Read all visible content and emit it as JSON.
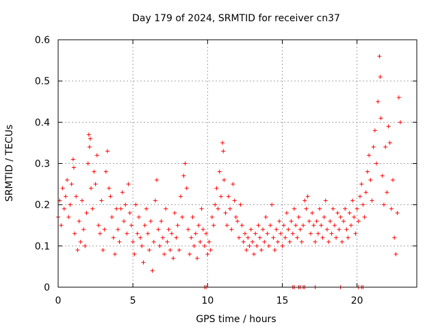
{
  "chart_data": {
    "type": "scatter",
    "title": "Day 179 of 2024, SRMTID for receiver cn37",
    "xlabel": "GPS time / hours",
    "ylabel": "SRMTID / TECUs",
    "xlim": [
      0,
      24
    ],
    "ylim": [
      0,
      0.6
    ],
    "xticks": [
      0,
      5,
      10,
      15,
      20
    ],
    "xtick_labels": [
      "0",
      "5",
      "10",
      "15",
      "20"
    ],
    "yticks": [
      0,
      0.1,
      0.2,
      0.3,
      0.4,
      0.5,
      0.6
    ],
    "ytick_labels": [
      "0",
      "0.1",
      "0.2",
      "0.3",
      "0.4",
      "0.5",
      "0.6"
    ],
    "grid": true,
    "marker": "plus",
    "color": "#ff0000",
    "grid_color": "#a0a0a0",
    "series": [
      {
        "name": "SRMTID",
        "points": [
          [
            0.0,
            0.17
          ],
          [
            0.1,
            0.21
          ],
          [
            0.2,
            0.15
          ],
          [
            0.3,
            0.24
          ],
          [
            0.4,
            0.19
          ],
          [
            0.5,
            0.22
          ],
          [
            0.6,
            0.26
          ],
          [
            0.7,
            0.17
          ],
          [
            0.8,
            0.2
          ],
          [
            0.9,
            0.25
          ],
          [
            1.0,
            0.31
          ],
          [
            1.05,
            0.29
          ],
          [
            1.1,
            0.13
          ],
          [
            1.2,
            0.22
          ],
          [
            1.3,
            0.09
          ],
          [
            1.4,
            0.16
          ],
          [
            1.5,
            0.11
          ],
          [
            1.6,
            0.21
          ],
          [
            1.7,
            0.14
          ],
          [
            1.8,
            0.1
          ],
          [
            1.9,
            0.18
          ],
          [
            2.0,
            0.3
          ],
          [
            2.05,
            0.37
          ],
          [
            2.1,
            0.34
          ],
          [
            2.15,
            0.36
          ],
          [
            2.2,
            0.24
          ],
          [
            2.3,
            0.19
          ],
          [
            2.4,
            0.28
          ],
          [
            2.5,
            0.25
          ],
          [
            2.6,
            0.32
          ],
          [
            2.7,
            0.15
          ],
          [
            2.8,
            0.13
          ],
          [
            2.9,
            0.21
          ],
          [
            3.0,
            0.09
          ],
          [
            3.1,
            0.14
          ],
          [
            3.2,
            0.28
          ],
          [
            3.3,
            0.33
          ],
          [
            3.4,
            0.24
          ],
          [
            3.5,
            0.22
          ],
          [
            3.6,
            0.17
          ],
          [
            3.7,
            0.12
          ],
          [
            3.8,
            0.08
          ],
          [
            3.9,
            0.19
          ],
          [
            4.0,
            0.14
          ],
          [
            4.1,
            0.11
          ],
          [
            4.2,
            0.19
          ],
          [
            4.3,
            0.23
          ],
          [
            4.4,
            0.16
          ],
          [
            4.5,
            0.2
          ],
          [
            4.6,
            0.13
          ],
          [
            4.7,
            0.25
          ],
          [
            4.8,
            0.18
          ],
          [
            4.9,
            0.15
          ],
          [
            5.0,
            0.11
          ],
          [
            5.1,
            0.08
          ],
          [
            5.2,
            0.2
          ],
          [
            5.3,
            0.13
          ],
          [
            5.4,
            0.17
          ],
          [
            5.5,
            0.12
          ],
          [
            5.6,
            0.1
          ],
          [
            5.7,
            0.06
          ],
          [
            5.8,
            0.15
          ],
          [
            5.9,
            0.19
          ],
          [
            6.0,
            0.13
          ],
          [
            6.1,
            0.09
          ],
          [
            6.2,
            0.16
          ],
          [
            6.3,
            0.04
          ],
          [
            6.4,
            0.11
          ],
          [
            6.5,
            0.21
          ],
          [
            6.6,
            0.26
          ],
          [
            6.7,
            0.14
          ],
          [
            6.8,
            0.1
          ],
          [
            6.9,
            0.16
          ],
          [
            7.0,
            0.12
          ],
          [
            7.1,
            0.08
          ],
          [
            7.2,
            0.19
          ],
          [
            7.3,
            0.11
          ],
          [
            7.4,
            0.14
          ],
          [
            7.5,
            0.09
          ],
          [
            7.6,
            0.13
          ],
          [
            7.7,
            0.07
          ],
          [
            7.8,
            0.18
          ],
          [
            7.9,
            0.12
          ],
          [
            8.0,
            0.15
          ],
          [
            8.1,
            0.09
          ],
          [
            8.2,
            0.22
          ],
          [
            8.3,
            0.17
          ],
          [
            8.4,
            0.27
          ],
          [
            8.5,
            0.3
          ],
          [
            8.6,
            0.24
          ],
          [
            8.7,
            0.14
          ],
          [
            8.8,
            0.08
          ],
          [
            8.9,
            0.12
          ],
          [
            9.0,
            0.17
          ],
          [
            9.1,
            0.1
          ],
          [
            9.2,
            0.13
          ],
          [
            9.3,
            0.07
          ],
          [
            9.4,
            0.15
          ],
          [
            9.5,
            0.11
          ],
          [
            9.6,
            0.19
          ],
          [
            9.7,
            0.14
          ],
          [
            9.8,
            0.1
          ],
          [
            9.9,
            0.13
          ],
          [
            10.0,
            0.08
          ],
          [
            10.1,
            0.11
          ],
          [
            10.2,
            0.09
          ],
          [
            10.3,
            0.17
          ],
          [
            10.4,
            0.15
          ],
          [
            10.5,
            0.2
          ],
          [
            10.6,
            0.24
          ],
          [
            10.7,
            0.19
          ],
          [
            10.8,
            0.28
          ],
          [
            10.9,
            0.22
          ],
          [
            11.0,
            0.35
          ],
          [
            11.05,
            0.33
          ],
          [
            11.1,
            0.26
          ],
          [
            11.2,
            0.18
          ],
          [
            11.3,
            0.15
          ],
          [
            11.4,
            0.22
          ],
          [
            11.5,
            0.19
          ],
          [
            11.6,
            0.14
          ],
          [
            11.7,
            0.25
          ],
          [
            11.8,
            0.21
          ],
          [
            11.9,
            0.17
          ],
          [
            12.0,
            0.16
          ],
          [
            12.1,
            0.12
          ],
          [
            12.2,
            0.2
          ],
          [
            12.3,
            0.15
          ],
          [
            12.4,
            0.11
          ],
          [
            12.5,
            0.13
          ],
          [
            12.6,
            0.09
          ],
          [
            12.7,
            0.12
          ],
          [
            12.8,
            0.1
          ],
          [
            12.9,
            0.14
          ],
          [
            13.0,
            0.11
          ],
          [
            13.1,
            0.08
          ],
          [
            13.2,
            0.13
          ],
          [
            13.3,
            0.1
          ],
          [
            13.4,
            0.15
          ],
          [
            13.5,
            0.12
          ],
          [
            13.6,
            0.09
          ],
          [
            13.7,
            0.14
          ],
          [
            13.8,
            0.11
          ],
          [
            13.9,
            0.17
          ],
          [
            14.0,
            0.13
          ],
          [
            14.1,
            0.1
          ],
          [
            14.2,
            0.15
          ],
          [
            14.3,
            0.2
          ],
          [
            14.4,
            0.12
          ],
          [
            14.5,
            0.09
          ],
          [
            14.6,
            0.14
          ],
          [
            14.7,
            0.11
          ],
          [
            14.8,
            0.16
          ],
          [
            14.9,
            0.13
          ],
          [
            15.0,
            0.1
          ],
          [
            15.1,
            0.15
          ],
          [
            15.2,
            0.12
          ],
          [
            15.3,
            0.18
          ],
          [
            15.4,
            0.14
          ],
          [
            15.5,
            0.11
          ],
          [
            15.6,
            0.16
          ],
          [
            15.7,
            0.13
          ],
          [
            15.8,
            0.19
          ],
          [
            15.9,
            0.15
          ],
          [
            16.0,
            0.12
          ],
          [
            16.1,
            0.17
          ],
          [
            16.2,
            0.14
          ],
          [
            16.3,
            0.11
          ],
          [
            16.4,
            0.15
          ],
          [
            16.5,
            0.21
          ],
          [
            16.6,
            0.19
          ],
          [
            16.7,
            0.22
          ],
          [
            16.8,
            0.16
          ],
          [
            16.9,
            0.13
          ],
          [
            17.0,
            0.18
          ],
          [
            17.1,
            0.15
          ],
          [
            17.2,
            0.11
          ],
          [
            17.3,
            0.16
          ],
          [
            17.4,
            0.13
          ],
          [
            17.5,
            0.19
          ],
          [
            17.6,
            0.15
          ],
          [
            17.7,
            0.12
          ],
          [
            17.8,
            0.17
          ],
          [
            17.9,
            0.21
          ],
          [
            18.0,
            0.14
          ],
          [
            18.1,
            0.11
          ],
          [
            18.2,
            0.16
          ],
          [
            18.3,
            0.13
          ],
          [
            18.4,
            0.19
          ],
          [
            18.5,
            0.15
          ],
          [
            18.6,
            0.12
          ],
          [
            18.7,
            0.18
          ],
          [
            18.8,
            0.14
          ],
          [
            18.9,
            0.17
          ],
          [
            19.0,
            0.11
          ],
          [
            19.1,
            0.16
          ],
          [
            19.2,
            0.19
          ],
          [
            19.3,
            0.14
          ],
          [
            19.4,
            0.12
          ],
          [
            19.5,
            0.18
          ],
          [
            19.6,
            0.15
          ],
          [
            19.7,
            0.21
          ],
          [
            19.8,
            0.17
          ],
          [
            19.9,
            0.13
          ],
          [
            20.0,
            0.19
          ],
          [
            20.1,
            0.16
          ],
          [
            20.2,
            0.22
          ],
          [
            20.3,
            0.25
          ],
          [
            20.4,
            0.2
          ],
          [
            20.5,
            0.17
          ],
          [
            20.6,
            0.23
          ],
          [
            20.7,
            0.28
          ],
          [
            20.8,
            0.32
          ],
          [
            20.9,
            0.26
          ],
          [
            21.0,
            0.21
          ],
          [
            21.1,
            0.34
          ],
          [
            21.2,
            0.38
          ],
          [
            21.3,
            0.3
          ],
          [
            21.4,
            0.45
          ],
          [
            21.5,
            0.56
          ],
          [
            21.55,
            0.51
          ],
          [
            21.6,
            0.41
          ],
          [
            21.7,
            0.27
          ],
          [
            21.8,
            0.2
          ],
          [
            21.9,
            0.34
          ],
          [
            22.0,
            0.23
          ],
          [
            22.1,
            0.39
          ],
          [
            22.2,
            0.35
          ],
          [
            22.3,
            0.19
          ],
          [
            22.4,
            0.26
          ],
          [
            22.5,
            0.12
          ],
          [
            22.6,
            0.08
          ],
          [
            22.7,
            0.18
          ],
          [
            22.8,
            0.46
          ],
          [
            22.9,
            0.4
          ]
        ]
      }
    ],
    "zero_points_x": [
      9.8,
      9.9,
      15.7,
      15.8,
      16.1,
      16.2,
      16.4,
      16.5,
      17.2,
      18.9,
      20.1,
      20.3,
      20.4
    ]
  }
}
